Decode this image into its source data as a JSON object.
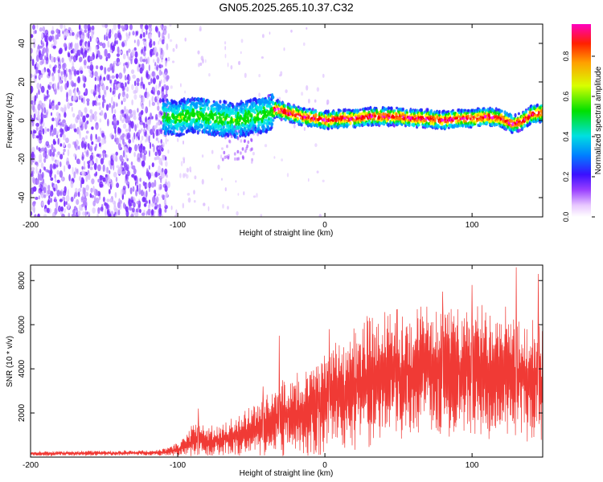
{
  "chart_data": [
    {
      "type": "heatmap",
      "title": "GN05.2025.265.10.37.C32",
      "xlabel": "Height of straight line (km)",
      "ylabel": "Frequency (Hz)",
      "xlim": [
        -200,
        148
      ],
      "ylim": [
        -50,
        50
      ],
      "x_ticks": [
        "-200",
        "-100",
        "0",
        "100"
      ],
      "x_tick_values": [
        -200,
        -100,
        0,
        100
      ],
      "y_ticks": [
        "40",
        "20",
        "0",
        "-20",
        "-40"
      ],
      "y_tick_values": [
        40,
        20,
        0,
        -20,
        -40
      ],
      "noise_region_x": [
        -200,
        -108
      ],
      "signal_track": {
        "x": [
          -110,
          -100,
          -90,
          -80,
          -70,
          -60,
          -50,
          -40,
          -33,
          -25,
          -15,
          -5,
          0,
          10,
          20,
          30,
          40,
          50,
          60,
          70,
          80,
          90,
          100,
          110,
          120,
          128,
          135,
          140,
          148
        ],
        "freq": [
          2,
          1,
          3,
          2,
          1,
          0,
          2,
          3,
          6,
          4,
          2,
          1,
          0,
          1,
          1,
          2,
          2,
          2,
          1,
          1,
          0,
          1,
          1,
          2,
          1,
          -2,
          0,
          3,
          4
        ]
      },
      "colorbar": {
        "label": "Normalized spectral amplitude",
        "ticks": [
          "0.0",
          "0.2",
          "0.4",
          "0.6",
          "0.8"
        ],
        "tick_values": [
          0.0,
          0.2,
          0.4,
          0.6,
          0.8
        ],
        "range": [
          0,
          0.96
        ]
      }
    },
    {
      "type": "line",
      "xlabel": "Height of straight line (km)",
      "ylabel": "SNR (10 * v/v)",
      "xlim": [
        -200,
        148
      ],
      "ylim": [
        0,
        8700
      ],
      "x_ticks": [
        "-200",
        "-100",
        "0",
        "100"
      ],
      "x_tick_values": [
        -200,
        -100,
        0,
        100
      ],
      "y_ticks": [
        "2000",
        "4000",
        "6000",
        "8000"
      ],
      "y_tick_values": [
        2000,
        4000,
        6000,
        8000
      ],
      "line_color": "#f03a35",
      "envelope": {
        "x": [
          -200,
          -150,
          -115,
          -105,
          -95,
          -88,
          -80,
          -70,
          -60,
          -50,
          -40,
          -30,
          -20,
          -10,
          0,
          10,
          20,
          30,
          40,
          50,
          60,
          70,
          80,
          90,
          100,
          110,
          120,
          130,
          140,
          148
        ],
        "mean": [
          150,
          180,
          190,
          260,
          450,
          900,
          600,
          750,
          900,
          1200,
          1400,
          1700,
          1900,
          2100,
          2600,
          2900,
          3200,
          3500,
          3700,
          3800,
          3900,
          4000,
          4000,
          4000,
          3900,
          3800,
          3700,
          3600,
          3500,
          3400
        ],
        "spread": [
          100,
          110,
          120,
          200,
          400,
          700,
          700,
          800,
          900,
          1000,
          1300,
          1500,
          1700,
          1900,
          2100,
          2300,
          2500,
          2600,
          2700,
          2800,
          2800,
          2800,
          2800,
          2800,
          2800,
          2800,
          2800,
          2800,
          2800,
          2700
        ]
      },
      "peaks": [
        {
          "x": 130,
          "y": 8600
        },
        {
          "x": 145,
          "y": 8300
        },
        {
          "x": 100,
          "y": 7800
        },
        {
          "x": 80,
          "y": 7500
        },
        {
          "x": 3,
          "y": 5800
        },
        {
          "x": -31,
          "y": 5500
        },
        {
          "x": -42,
          "y": 3200
        },
        {
          "x": -86,
          "y": 2200
        }
      ]
    }
  ],
  "colors": {
    "cmap": [
      "#ffffff",
      "#d8b6ff",
      "#7a2cff",
      "#1f1fff",
      "#0099ff",
      "#00e6e6",
      "#00e000",
      "#ffff00",
      "#ff8000",
      "#ff0000",
      "#ff00ff"
    ],
    "background": "#ffffff"
  }
}
